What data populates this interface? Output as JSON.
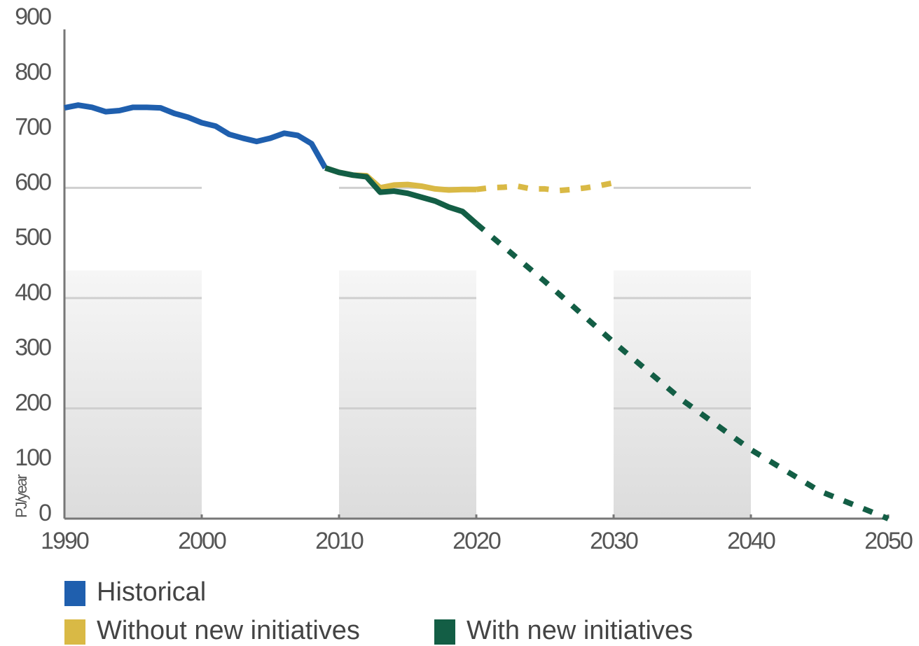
{
  "chart_data": {
    "type": "line",
    "y_label": "PJ/year",
    "xlim": [
      1990,
      2050
    ],
    "xticks": [
      1990,
      2000,
      2010,
      2020,
      2030,
      2040,
      2050
    ],
    "ylim": [
      0,
      900
    ],
    "yticks": [
      0,
      100,
      200,
      300,
      400,
      500,
      600,
      700,
      800,
      900
    ],
    "grid_lines": [
      200,
      400,
      600
    ],
    "dashed_from_x": 2020,
    "series": [
      {
        "name": "Historical",
        "color": "#1f5fae",
        "x": [
          1990,
          1991,
          1992,
          1993,
          1994,
          1995,
          1996,
          1997,
          1998,
          1999,
          2000,
          2001,
          2002,
          2003,
          2004,
          2005,
          2006,
          2007,
          2008,
          2009
        ],
        "values": [
          745,
          750,
          746,
          738,
          740,
          746,
          746,
          745,
          735,
          728,
          718,
          712,
          697,
          690,
          684,
          690,
          699,
          695,
          680,
          636
        ]
      },
      {
        "name": "Without new initiatives",
        "color": "#d9b945",
        "x": [
          2009,
          2010,
          2011,
          2012,
          2013,
          2014,
          2015,
          2016,
          2017,
          2018,
          2019,
          2020,
          2021,
          2022,
          2023,
          2024,
          2025,
          2026,
          2027,
          2028,
          2029,
          2030
        ],
        "values": [
          636,
          628,
          623,
          622,
          600,
          605,
          606,
          603,
          598,
          596,
          597,
          597,
          600,
          601,
          603,
          598,
          598,
          595,
          597,
          600,
          604,
          609
        ]
      },
      {
        "name": "With new initiatives",
        "color": "#135e45",
        "x": [
          2009,
          2010,
          2011,
          2012,
          2013,
          2014,
          2015,
          2016,
          2017,
          2018,
          2019,
          2020,
          2025,
          2030,
          2035,
          2040,
          2045,
          2050
        ],
        "values": [
          636,
          628,
          623,
          620,
          592,
          594,
          590,
          583,
          576,
          565,
          557,
          535,
          430,
          320,
          215,
          125,
          50,
          0
        ]
      }
    ]
  }
}
